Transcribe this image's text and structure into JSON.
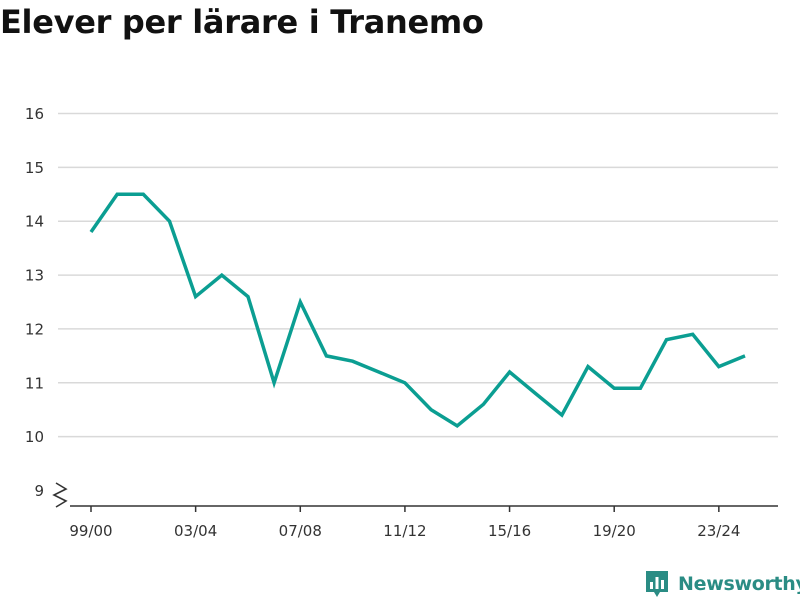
{
  "colors": {
    "line": "#0b9e92",
    "brand": "#2a8c84",
    "grid": "#d9d9d9",
    "axis": "#333333"
  },
  "brand": {
    "name": "Newsworthy",
    "icon": "newsworthy-logo-icon"
  },
  "chart_data": {
    "type": "line",
    "title": "Elever per lärare i Tranemo",
    "xlabel": "",
    "ylabel": "",
    "x": [
      "99/00",
      "00/01",
      "01/02",
      "02/03",
      "03/04",
      "04/05",
      "05/06",
      "06/07",
      "07/08",
      "08/09",
      "09/10",
      "10/11",
      "11/12",
      "12/13",
      "13/14",
      "14/15",
      "15/16",
      "16/17",
      "17/18",
      "18/19",
      "19/20",
      "20/21",
      "21/22",
      "22/23",
      "23/24",
      "24/25"
    ],
    "series": [
      {
        "values": [
          13.8,
          14.5,
          14.5,
          14.0,
          12.6,
          13.0,
          12.6,
          11.0,
          12.5,
          11.5,
          11.4,
          11.2,
          11.0,
          10.5,
          10.2,
          10.6,
          11.2,
          10.8,
          10.4,
          11.3,
          10.9,
          10.9,
          11.8,
          11.9,
          11.3,
          11.5
        ]
      }
    ],
    "x_tick_labels": [
      "99/00",
      "03/04",
      "07/08",
      "11/12",
      "15/16",
      "19/20",
      "23/24"
    ],
    "y_ticks": [
      9,
      10,
      11,
      12,
      13,
      14,
      15,
      16
    ],
    "ylim": [
      9,
      16
    ],
    "y_axis_break": true,
    "grid": true,
    "legend": "none"
  }
}
